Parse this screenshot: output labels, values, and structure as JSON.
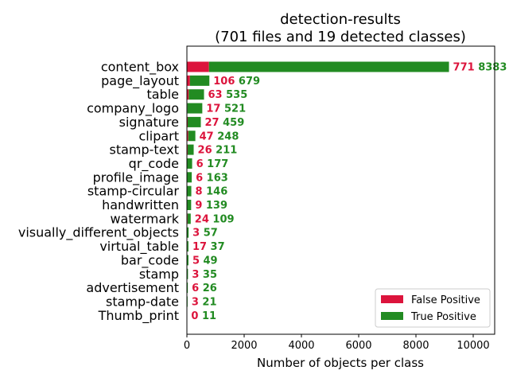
{
  "chart_data": {
    "type": "bar",
    "orientation": "horizontal",
    "stacked": true,
    "title": "detection-results",
    "subtitle": "(701 files and 19 detected classes)",
    "xlabel": "Number of objects per class",
    "ylabel": "",
    "xlim": [
      0,
      10750
    ],
    "xticks": [
      0,
      2000,
      4000,
      6000,
      8000,
      10000
    ],
    "grid": false,
    "legend_position": "lower-right",
    "categories": [
      "content_box",
      "page_layout",
      "table",
      "company_logo",
      "signature",
      "clipart",
      "stamp-text",
      "qr_code",
      "profile_image",
      "stamp-circular",
      "handwritten",
      "watermark",
      "visually_different_objects",
      "virtual_table",
      "bar_code",
      "stamp",
      "advertisement",
      "stamp-date",
      "Thumb_print"
    ],
    "series": [
      {
        "name": "False Positive",
        "color": "#dc143c",
        "values": [
          771,
          106,
          63,
          17,
          27,
          47,
          26,
          6,
          6,
          8,
          9,
          24,
          3,
          17,
          5,
          3,
          6,
          3,
          0
        ]
      },
      {
        "name": "True Positive",
        "color": "#228b22",
        "values": [
          8383,
          679,
          535,
          521,
          459,
          248,
          211,
          177,
          163,
          146,
          139,
          109,
          57,
          37,
          49,
          35,
          26,
          21,
          11
        ]
      }
    ]
  }
}
